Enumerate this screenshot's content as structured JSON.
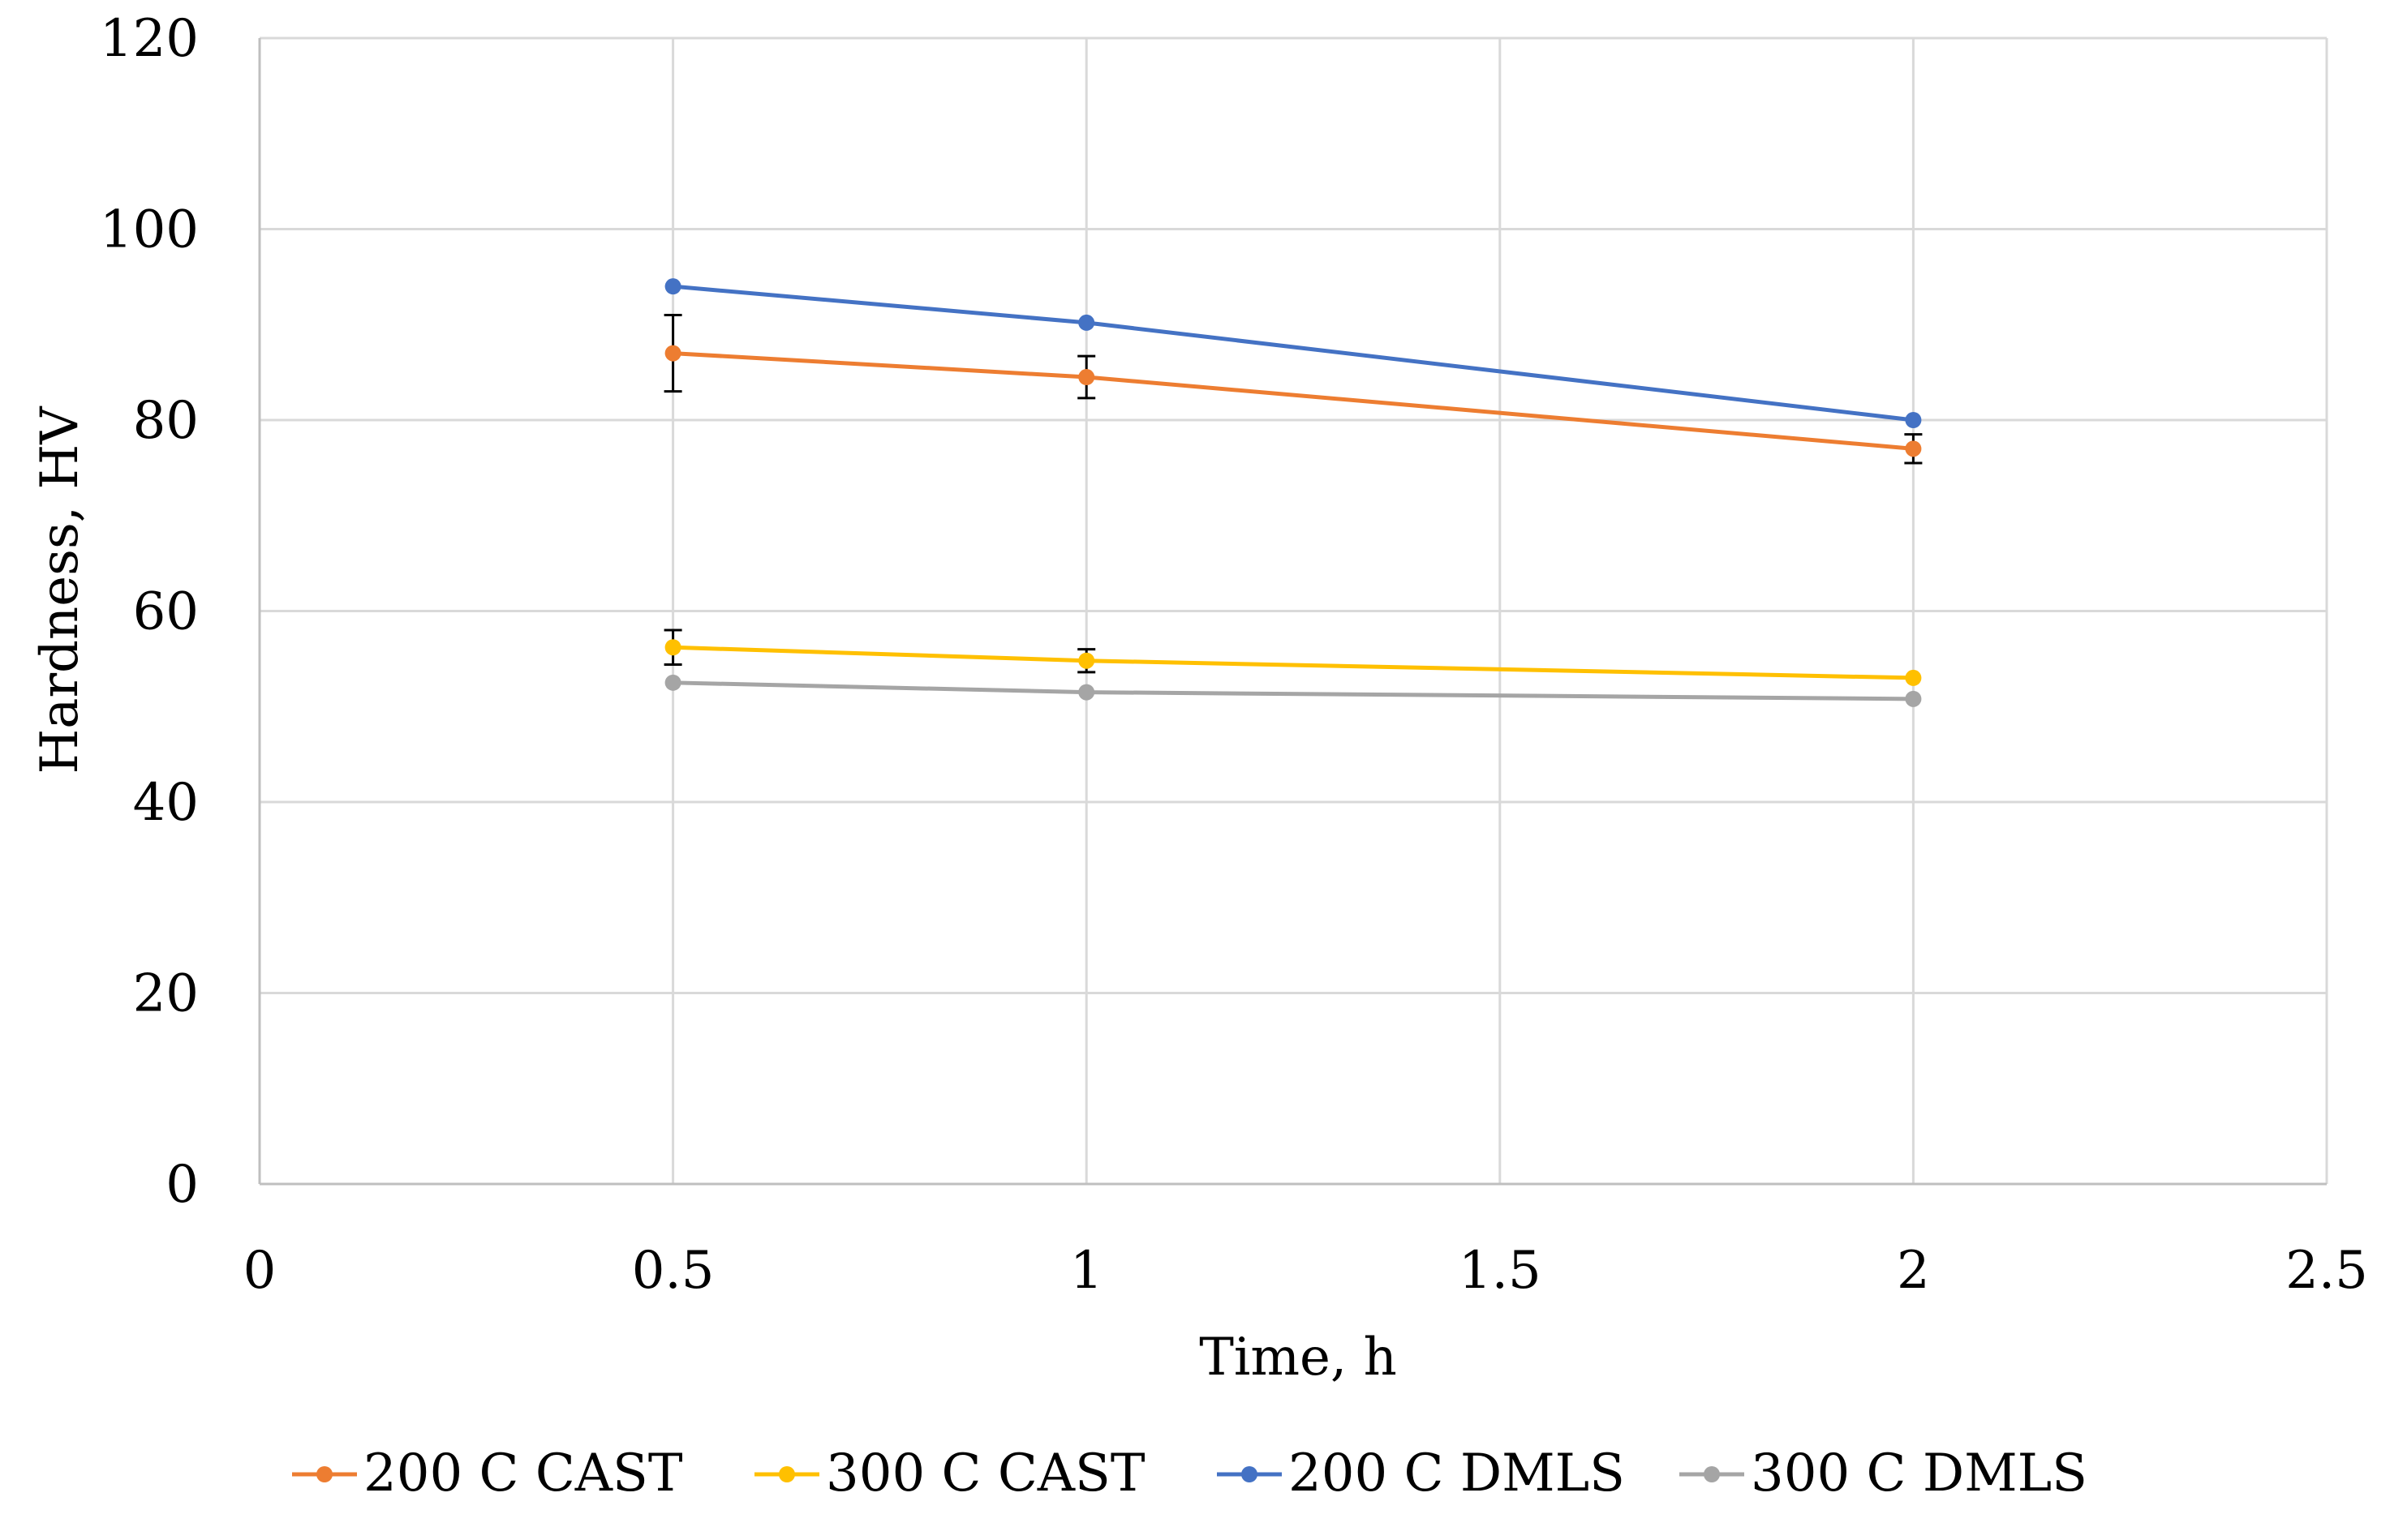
{
  "chart_data": {
    "type": "line",
    "title": "",
    "xlabel": "Time, h",
    "ylabel": "Hardness, HV",
    "xlim": [
      0,
      2.5
    ],
    "ylim": [
      0,
      120
    ],
    "x_ticks": [
      0,
      0.5,
      1,
      1.5,
      2,
      2.5
    ],
    "x_tick_labels": [
      "0",
      "0.5",
      "1",
      "1.5",
      "2",
      "2.5"
    ],
    "y_ticks": [
      0,
      20,
      40,
      60,
      80,
      100,
      120
    ],
    "y_tick_labels": [
      "0",
      "20",
      "40",
      "60",
      "80",
      "100",
      "120"
    ],
    "grid": true,
    "legend_position": "bottom",
    "series": [
      {
        "name": "200 C CAST",
        "color": "#ED7D31",
        "x": [
          0.5,
          1,
          2
        ],
        "y": [
          87,
          84.5,
          77
        ],
        "error": [
          4,
          2.2,
          1.5
        ]
      },
      {
        "name": "300 C CAST",
        "color": "#FFC000",
        "x": [
          0.5,
          1,
          2
        ],
        "y": [
          56.2,
          54.8,
          53
        ],
        "error": [
          1.8,
          1.2,
          0
        ]
      },
      {
        "name": "200 C DMLS",
        "color": "#4472C4",
        "x": [
          0.5,
          1,
          2
        ],
        "y": [
          94,
          90.2,
          80
        ],
        "error": [
          0,
          0,
          0
        ]
      },
      {
        "name": "300 C DMLS",
        "color": "#A5A5A5",
        "x": [
          0.5,
          1,
          2
        ],
        "y": [
          52.5,
          51.5,
          50.8
        ],
        "error": [
          0,
          0,
          0
        ]
      }
    ]
  }
}
